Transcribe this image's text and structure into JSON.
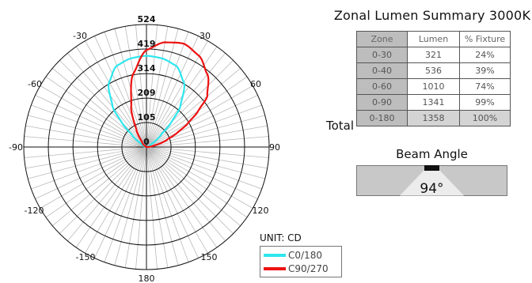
{
  "chart_data": {
    "type": "polar",
    "radial_ticks": [
      105,
      209,
      314,
      419,
      524
    ],
    "radial_tick_labels": [
      "0",
      "105",
      "209",
      "314",
      "419",
      "524"
    ],
    "angle_labels": [
      "0",
      "30",
      "60",
      "90",
      "120",
      "150",
      "180",
      "-150",
      "-120",
      "-90",
      "-60",
      "-30"
    ],
    "rmax": 524,
    "unit": "UNIT: CD",
    "series": [
      {
        "name": "C0/180",
        "color": "#2ee6ee",
        "angles": [
          -90,
          -60,
          -50,
          -45,
          -40,
          -30,
          -20,
          -10,
          0,
          10,
          20,
          30,
          40,
          45,
          50,
          60,
          90
        ],
        "values": [
          0,
          18,
          80,
          150,
          225,
          320,
          370,
          385,
          390,
          385,
          370,
          320,
          225,
          150,
          80,
          18,
          0
        ]
      },
      {
        "name": "C90/270",
        "color": "#ee1111",
        "angles": [
          -90,
          -60,
          -40,
          -30,
          -20,
          -10,
          0,
          10,
          20,
          30,
          40,
          50,
          55,
          60,
          65,
          70,
          80,
          90
        ],
        "values": [
          0,
          5,
          30,
          85,
          190,
          320,
          415,
          455,
          470,
          450,
          405,
          340,
          270,
          205,
          145,
          95,
          30,
          0
        ]
      }
    ]
  },
  "summary": {
    "title": "Zonal Lumen Summary 3000K",
    "headers": [
      "Zone",
      "Lumen",
      "% Fixture"
    ],
    "rows": [
      [
        "0-30",
        "321",
        "24%"
      ],
      [
        "0-40",
        "536",
        "39%"
      ],
      [
        "0-60",
        "1010",
        "74%"
      ],
      [
        "0-90",
        "1341",
        "99%"
      ]
    ],
    "total_label": "Total",
    "total_row": [
      "0-180",
      "1358",
      "100%"
    ]
  },
  "beam": {
    "title": "Beam Angle",
    "value": "94°"
  }
}
